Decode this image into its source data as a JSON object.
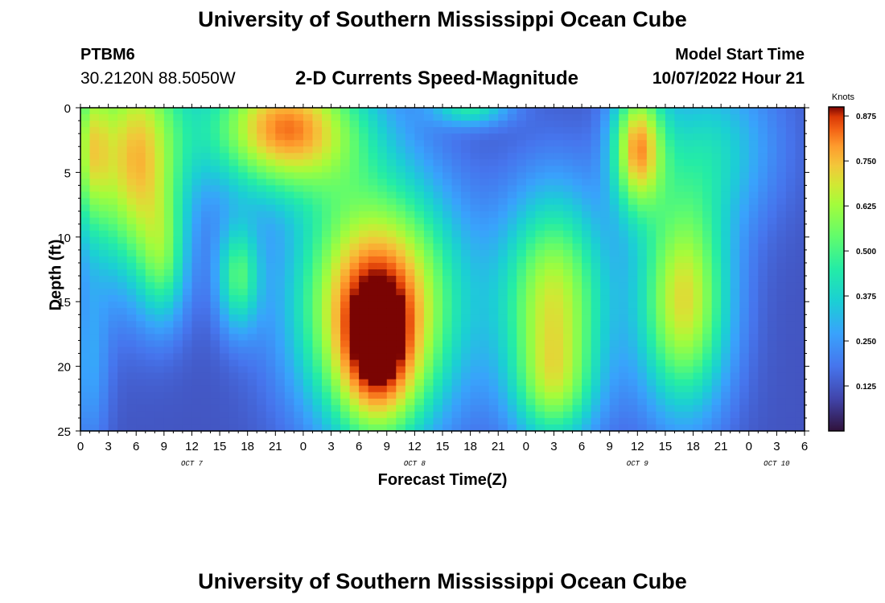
{
  "header": {
    "title": "University of Southern Mississippi Ocean Cube",
    "station": "PTBM6",
    "coords": "30.2120N  88.5050W",
    "subtitle": "2-D Currents Speed-Magnitude",
    "model_start_label": "Model Start Time",
    "model_start_value": "10/07/2022 Hour 21"
  },
  "footer": {
    "title": "University of Southern Mississippi Ocean Cube"
  },
  "chart_data": {
    "type": "heatmap",
    "title": "2-D Currents Speed-Magnitude",
    "xlabel": "Forecast Time(Z)",
    "ylabel": "Depth (ft)",
    "x_tick_labels": [
      "0",
      "3",
      "6",
      "9",
      "12",
      "15",
      "18",
      "21",
      "0",
      "3",
      "6",
      "9",
      "12",
      "15",
      "18",
      "21",
      "0",
      "3",
      "6",
      "9",
      "12",
      "15",
      "18",
      "21",
      "0",
      "3",
      "6"
    ],
    "date_labels": [
      {
        "label": "OCT 7",
        "hour_index": 12
      },
      {
        "label": "OCT 8",
        "hour_index": 36
      },
      {
        "label": "OCT 9",
        "hour_index": 60
      },
      {
        "label": "OCT 10",
        "hour_index": 75
      }
    ],
    "x_range_hours": [
      0,
      78
    ],
    "y_ticks": [
      0,
      5,
      10,
      15,
      20,
      25
    ],
    "ylim": [
      0,
      25
    ],
    "y_inverted": true,
    "colorbar": {
      "label": "Knots",
      "range": [
        0,
        0.9
      ],
      "ticks": [
        "0.875",
        "0.750",
        "0.625",
        "0.500",
        "0.375",
        "0.250",
        "0.125"
      ],
      "tick_values": [
        0.875,
        0.75,
        0.625,
        0.5,
        0.375,
        0.25,
        0.125
      ]
    },
    "blobs": [
      {
        "t": 6,
        "d": 4,
        "st": 3.6,
        "sd": 6.5,
        "a": 0.62
      },
      {
        "t": 9,
        "d": 12,
        "st": 1.8,
        "sd": 3.5,
        "a": 0.25
      },
      {
        "t": 1,
        "d": 3,
        "st": 1.5,
        "sd": 4.5,
        "a": 0.35
      },
      {
        "t": 17,
        "d": 13,
        "st": 1.7,
        "sd": 3.0,
        "a": 0.36
      },
      {
        "t": 22,
        "d": 1.5,
        "st": 6.0,
        "sd": 3.6,
        "a": 0.68
      },
      {
        "t": 32,
        "d": 15,
        "st": 6.0,
        "sd": 6.5,
        "a": 0.78
      },
      {
        "t": 32,
        "d": 21,
        "st": 3.2,
        "sd": 4.0,
        "a": 0.3
      },
      {
        "t": 42,
        "d": 0,
        "st": 3.0,
        "sd": 1.0,
        "a": 0.3
      },
      {
        "t": 51,
        "d": 15,
        "st": 4.0,
        "sd": 6.0,
        "a": 0.55
      },
      {
        "t": 51,
        "d": 22,
        "st": 3.0,
        "sd": 3.0,
        "a": 0.25
      },
      {
        "t": 60,
        "d": 3,
        "st": 2.0,
        "sd": 3.5,
        "a": 0.58
      },
      {
        "t": 65,
        "d": 15,
        "st": 3.5,
        "sd": 6.0,
        "a": 0.58
      },
      {
        "t": 68,
        "d": 3,
        "st": 5.0,
        "sd": 4.5,
        "a": 0.24
      },
      {
        "t": 1,
        "d": 20,
        "st": 1.5,
        "sd": 5.0,
        "a": 0.15
      }
    ],
    "base_speed": 0.12
  }
}
